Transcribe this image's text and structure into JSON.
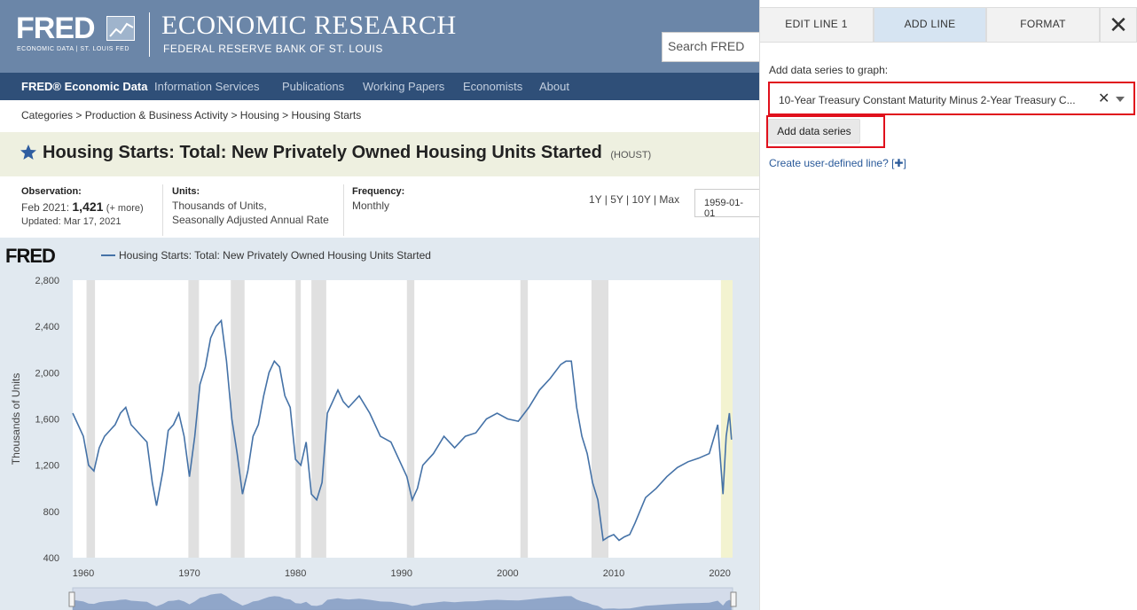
{
  "header": {
    "logo_text": "FRED",
    "logo_sub": "ECONOMIC DATA | ST. LOUIS FED",
    "title": "ECONOMIC RESEARCH",
    "subtitle": "FEDERAL RESERVE BANK OF ST. LOUIS",
    "search_placeholder": "Search FRED"
  },
  "nav": {
    "items": [
      "FRED® Economic Data",
      "Information Services",
      "Publications",
      "Working Papers",
      "Economists",
      "About"
    ]
  },
  "breadcrumb": "Categories > Production & Business Activity > Housing > Housing Starts",
  "series": {
    "title": "Housing Starts: Total: New Privately Owned Housing Units Started",
    "id": "(HOUST)"
  },
  "meta": {
    "observation_label": "Observation:",
    "observation_period": "Feb 2021:",
    "observation_value": "1,421",
    "observation_more": "(+ more)",
    "updated": "Updated: Mar 17, 2021",
    "units_label": "Units:",
    "units_line1": "Thousands of Units,",
    "units_line2": "Seasonally Adjusted Annual Rate",
    "frequency_label": "Frequency:",
    "frequency_value": "Monthly",
    "ranges": "1Y | 5Y | 10Y | Max",
    "start_date": "1959-01-01"
  },
  "chart": {
    "logo": "FRED",
    "legend": "Housing Starts: Total: New Privately Owned Housing Units Started",
    "line_color": "#4572a7"
  },
  "chart_data": {
    "type": "line",
    "title": "",
    "xlabel": "",
    "ylabel": "Thousands of Units",
    "ylim": [
      400,
      2800
    ],
    "yticks": [
      "400",
      "800",
      "1,200",
      "1,600",
      "2,000",
      "2,400",
      "2,800"
    ],
    "xticks": [
      "1960",
      "1970",
      "1980",
      "1990",
      "2000",
      "2010",
      "2020"
    ],
    "grid": false,
    "recessions": [
      [
        1960.3,
        1961.1
      ],
      [
        1969.9,
        1970.9
      ],
      [
        1973.9,
        1975.2
      ],
      [
        1980.0,
        1980.5
      ],
      [
        1981.5,
        1982.9
      ],
      [
        1990.5,
        1991.2
      ],
      [
        2001.2,
        2001.9
      ],
      [
        2007.9,
        2009.5
      ],
      [
        2020.1,
        2020.4
      ]
    ],
    "series": [
      {
        "name": "Housing Starts: Total: New Privately Owned Housing Units Started",
        "x": [
          1959.0,
          1959.5,
          1960.0,
          1960.5,
          1961.0,
          1961.5,
          1962.0,
          1962.5,
          1963.0,
          1963.5,
          1964.0,
          1964.5,
          1965.0,
          1965.5,
          1966.0,
          1966.5,
          1966.9,
          1967.5,
          1968.0,
          1968.5,
          1969.0,
          1969.5,
          1970.0,
          1970.5,
          1971.0,
          1971.5,
          1972.0,
          1972.5,
          1973.0,
          1973.5,
          1974.0,
          1974.5,
          1975.0,
          1975.5,
          1976.0,
          1976.5,
          1977.0,
          1977.5,
          1978.0,
          1978.5,
          1979.0,
          1979.5,
          1980.0,
          1980.5,
          1981.0,
          1981.5,
          1982.0,
          1982.5,
          1983.0,
          1983.5,
          1984.0,
          1984.5,
          1985.0,
          1986.0,
          1987.0,
          1988.0,
          1989.0,
          1990.0,
          1990.5,
          1991.0,
          1991.5,
          1992.0,
          1993.0,
          1994.0,
          1995.0,
          1996.0,
          1997.0,
          1998.0,
          1999.0,
          2000.0,
          2001.0,
          2002.0,
          2003.0,
          2004.0,
          2005.0,
          2005.5,
          2006.0,
          2006.5,
          2007.0,
          2007.5,
          2008.0,
          2008.5,
          2009.0,
          2009.5,
          2010.0,
          2010.5,
          2011.0,
          2011.5,
          2012.0,
          2013.0,
          2014.0,
          2015.0,
          2016.0,
          2017.0,
          2018.0,
          2019.0,
          2019.8,
          2020.3,
          2020.6,
          2020.9,
          2021.1
        ],
        "values": [
          1650,
          1550,
          1450,
          1200,
          1150,
          1350,
          1450,
          1500,
          1550,
          1650,
          1700,
          1550,
          1500,
          1450,
          1400,
          1050,
          850,
          1150,
          1500,
          1550,
          1650,
          1450,
          1100,
          1450,
          1900,
          2050,
          2300,
          2400,
          2450,
          2100,
          1600,
          1300,
          950,
          1150,
          1450,
          1550,
          1800,
          2000,
          2100,
          2050,
          1800,
          1700,
          1250,
          1200,
          1400,
          950,
          900,
          1050,
          1650,
          1750,
          1850,
          1750,
          1700,
          1800,
          1650,
          1450,
          1400,
          1200,
          1100,
          900,
          1000,
          1200,
          1300,
          1450,
          1350,
          1450,
          1480,
          1600,
          1650,
          1600,
          1580,
          1700,
          1850,
          1950,
          2070,
          2100,
          2100,
          1700,
          1450,
          1300,
          1050,
          900,
          550,
          580,
          600,
          550,
          580,
          600,
          700,
          920,
          1000,
          1100,
          1180,
          1230,
          1260,
          1300,
          1550,
          950,
          1450,
          1650,
          1421
        ]
      }
    ]
  },
  "panel": {
    "tabs": [
      "EDIT LINE 1",
      "ADD LINE",
      "FORMAT"
    ],
    "close_symbol": "✕",
    "add_label": "Add data series to graph:",
    "selected_series": "10-Year Treasury Constant Maturity Minus 2-Year Treasury C...",
    "clear_symbol": "✕",
    "add_button": "Add data series",
    "user_line_link": "Create user-defined line? [",
    "user_line_plus": "✚",
    "user_line_close": "]"
  }
}
